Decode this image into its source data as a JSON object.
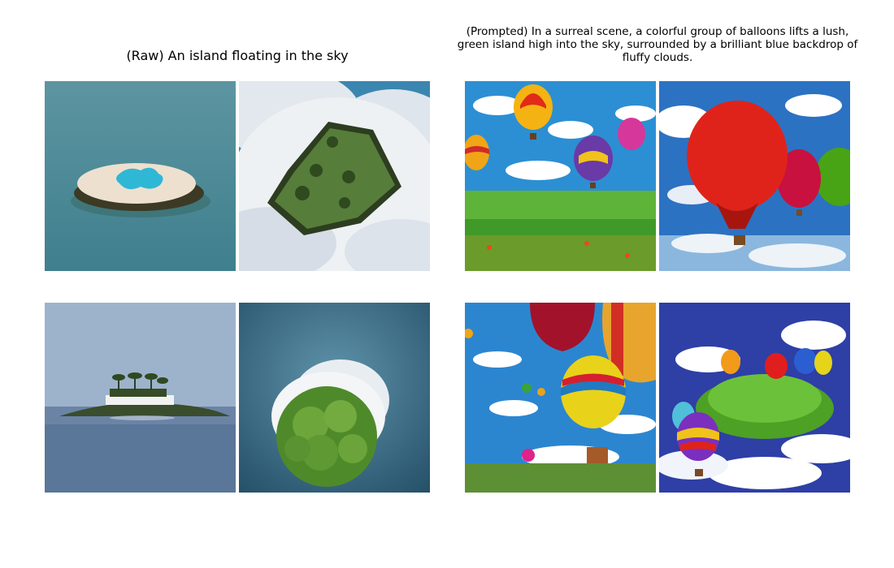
{
  "panels": {
    "raw": {
      "caption": "(Raw) An island floating in the sky",
      "images": [
        {
          "id": "raw-1",
          "subject": "island-ringed-by-beach-in-sea"
        },
        {
          "id": "raw-2",
          "subject": "tree-covered-island-among-clouds"
        },
        {
          "id": "raw-3",
          "subject": "palm-island-with-building-on-water"
        },
        {
          "id": "raw-4",
          "subject": "round-tree-island-over-cloud-and-sea"
        }
      ]
    },
    "prompted": {
      "caption": "(Prompted) In a surreal scene, a colorful group of balloons lifts a lush, green island high into the sky, surrounded by a brilliant blue backdrop of fluffy clouds.",
      "images": [
        {
          "id": "prompted-1",
          "subject": "hot-air-balloons-over-green-meadow"
        },
        {
          "id": "prompted-2",
          "subject": "red-balloons-above-clouds"
        },
        {
          "id": "prompted-3",
          "subject": "striped-hot-air-balloons-over-field"
        },
        {
          "id": "prompted-4",
          "subject": "balloons-lifting-green-island"
        }
      ]
    }
  },
  "colors": {
    "sea": "#4f8b98",
    "sky": "#2b82cf",
    "foliage": "#4f8a2a",
    "balloon_red": "#e0231a"
  }
}
